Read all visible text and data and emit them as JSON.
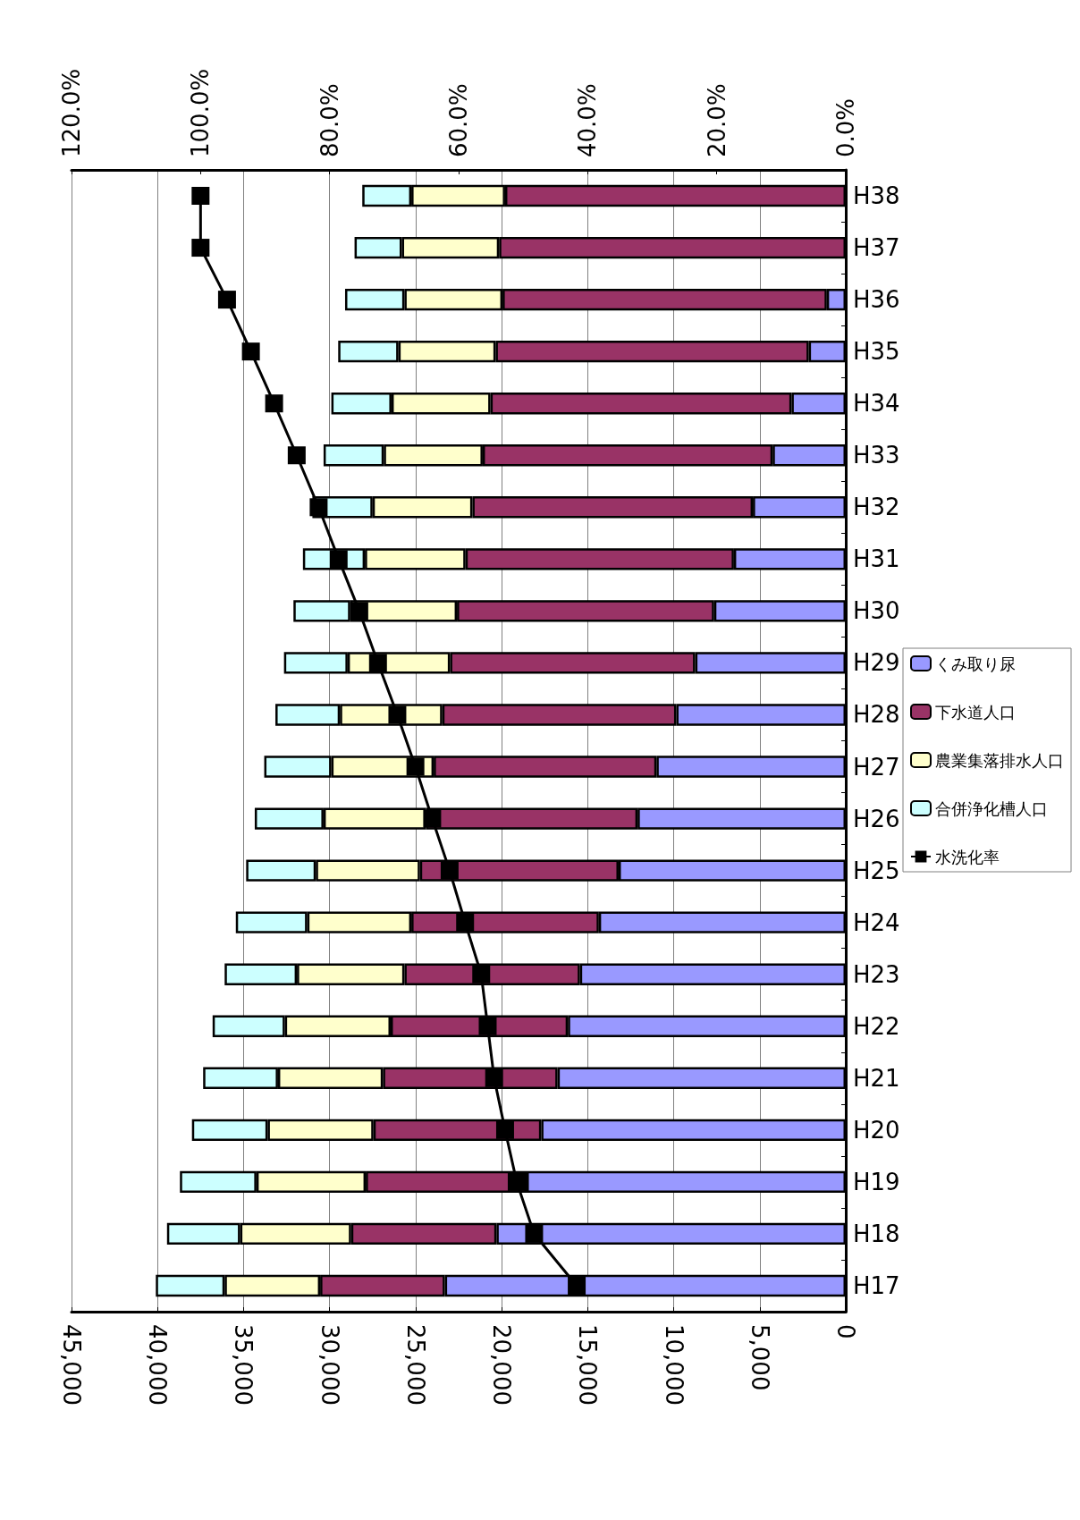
{
  "chart_data": {
    "type": "bar",
    "orientation": "horizontal",
    "stacked": true,
    "categories": [
      "H38",
      "H37",
      "H36",
      "H35",
      "H34",
      "H33",
      "H32",
      "H31",
      "H30",
      "H29",
      "H28",
      "H27",
      "H26",
      "H25",
      "H24",
      "H23",
      "H22",
      "H21",
      "H20",
      "H19",
      "H18",
      "H17"
    ],
    "series": [
      {
        "name": "くみ取り尿",
        "color": "#9999ff",
        "values": [
          0,
          0,
          1100,
          2150,
          3150,
          4250,
          5400,
          6500,
          7650,
          8750,
          9850,
          11000,
          12100,
          13200,
          14350,
          15450,
          16150,
          16750,
          17700,
          18550,
          20300,
          23300
        ]
      },
      {
        "name": "下水道人口",
        "color": "#993366",
        "values": [
          19800,
          20150,
          18850,
          18200,
          17500,
          16850,
          16300,
          15600,
          14950,
          14250,
          13600,
          12950,
          12300,
          11550,
          10900,
          10200,
          10300,
          10150,
          9750,
          9350,
          8450,
          7250
        ]
      },
      {
        "name": "農業集落排水人口",
        "color": "#ffffcc",
        "values": [
          5450,
          5650,
          5700,
          5650,
          5750,
          5750,
          5800,
          5850,
          6200,
          5950,
          5950,
          5950,
          5950,
          6050,
          6050,
          6250,
          6150,
          6100,
          6150,
          6350,
          6450,
          5550
        ]
      },
      {
        "name": "合併浄化槽人口",
        "color": "#ccffff",
        "values": [
          2850,
          2750,
          3450,
          3500,
          3500,
          3500,
          3500,
          3600,
          3300,
          3700,
          3750,
          3900,
          4000,
          4050,
          4150,
          4200,
          4200,
          4350,
          4400,
          4450,
          4250,
          4000
        ]
      },
      {
        "name": "水洗化率",
        "type": "line",
        "axis": "x2",
        "color": "#000000",
        "marker": "square",
        "values": [
          100.0,
          100.0,
          95.9,
          92.2,
          88.6,
          85.1,
          81.7,
          78.6,
          75.4,
          72.5,
          69.5,
          66.7,
          64.1,
          61.4,
          59.0,
          56.5,
          55.5,
          54.5,
          52.8,
          51.0,
          48.3,
          41.7
        ]
      }
    ],
    "xlim": [
      45000,
      0
    ],
    "xticks": [
      {
        "value": 45000,
        "label": "45,000"
      },
      {
        "value": 40000,
        "label": "40,000"
      },
      {
        "value": 35000,
        "label": "35,000"
      },
      {
        "value": 30000,
        "label": "30,000"
      },
      {
        "value": 25000,
        "label": "25,000"
      },
      {
        "value": 20000,
        "label": "20,000"
      },
      {
        "value": 15000,
        "label": "15,000"
      },
      {
        "value": 10000,
        "label": "10,000"
      },
      {
        "value": 5000,
        "label": "5,000"
      },
      0
    ],
    "x2lim": [
      120,
      0
    ],
    "x2ticks": [
      {
        "value": 120,
        "label": "120.0%"
      },
      {
        "value": 100,
        "label": "100.0%"
      },
      {
        "value": 80,
        "label": "80.0%"
      },
      {
        "value": 60,
        "label": "60.0%"
      },
      {
        "value": 40,
        "label": "40.0%"
      },
      {
        "value": 20,
        "label": "20.0%"
      },
      {
        "value": 0,
        "label": "0.0%"
      }
    ],
    "grid": "x",
    "legend": "right"
  }
}
